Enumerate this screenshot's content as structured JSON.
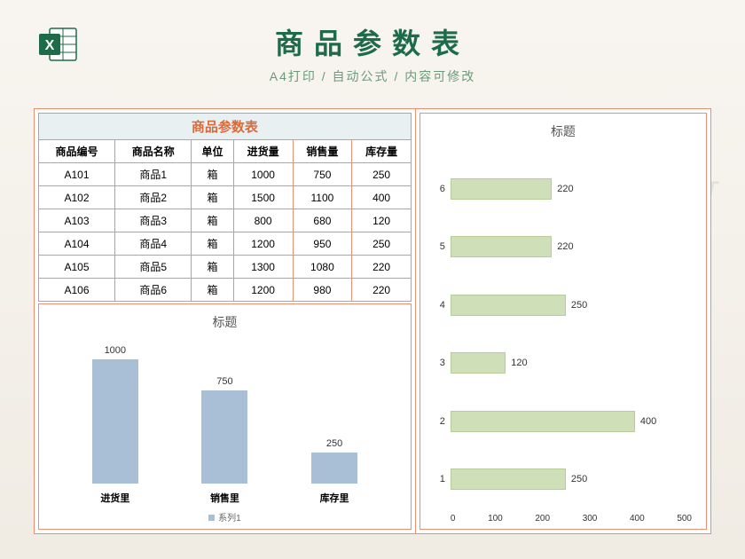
{
  "header": {
    "title": "商品参数表",
    "subtitle": "A4打印 / 自动公式 / 内容可修改"
  },
  "watermark": "515PPT",
  "table": {
    "title": "商品参数表",
    "columns": [
      "商品编号",
      "商品名称",
      "单位",
      "进货量",
      "销售量",
      "库存量"
    ],
    "rows": [
      [
        "A101",
        "商品1",
        "箱",
        "1000",
        "750",
        "250"
      ],
      [
        "A102",
        "商品2",
        "箱",
        "1500",
        "1100",
        "400"
      ],
      [
        "A103",
        "商品3",
        "箱",
        "800",
        "680",
        "120"
      ],
      [
        "A104",
        "商品4",
        "箱",
        "1200",
        "950",
        "250"
      ],
      [
        "A105",
        "商品5",
        "箱",
        "1300",
        "1080",
        "220"
      ],
      [
        "A106",
        "商品6",
        "箱",
        "1200",
        "980",
        "220"
      ]
    ]
  },
  "vchart": {
    "title": "标题",
    "bar_color": "#a9bfd6",
    "max": 1000,
    "bars": [
      {
        "label": "1000",
        "value": 1000,
        "cat": "进货里"
      },
      {
        "label": "750",
        "value": 750,
        "cat": "销售里"
      },
      {
        "label": "250",
        "value": 250,
        "cat": "库存里"
      }
    ],
    "legend": "系列1"
  },
  "hchart": {
    "title": "标题",
    "bar_color": "#cfe0b8",
    "max": 500,
    "bars": [
      {
        "y": "6",
        "value": 220
      },
      {
        "y": "5",
        "value": 220
      },
      {
        "y": "4",
        "value": 250
      },
      {
        "y": "3",
        "value": 120
      },
      {
        "y": "2",
        "value": 400
      },
      {
        "y": "1",
        "value": 250
      }
    ],
    "xticks": [
      "0",
      "100",
      "200",
      "300",
      "400",
      "500"
    ]
  }
}
